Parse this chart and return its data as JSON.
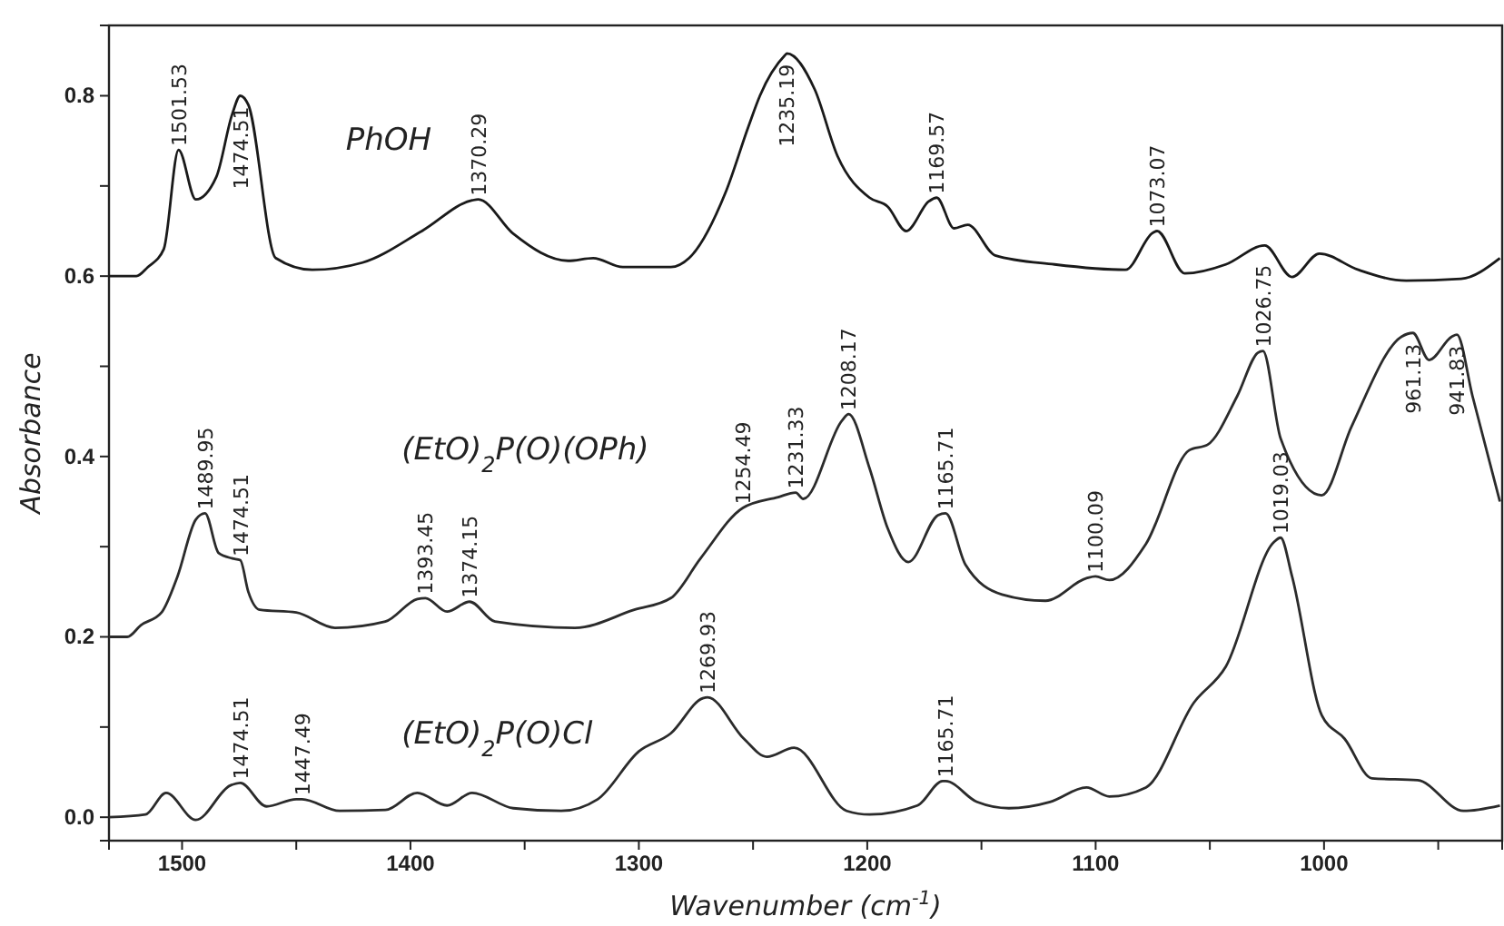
{
  "chart_data": {
    "type": "line",
    "xlabel": "Wavenumber (cm$^{-1}$)",
    "ylabel": "Absorbance",
    "xlim": [
      1532,
      922
    ],
    "ylim": [
      -0.026,
      0.878
    ],
    "xticks": [
      1500,
      {
        "value": 1450,
        "label": null
      },
      1400,
      {
        "value": 1350,
        "label": null
      },
      1300,
      {
        "value": 1250,
        "label": null
      },
      1200,
      {
        "value": 1150,
        "label": null
      },
      1100,
      {
        "value": 1050,
        "label": null
      },
      1000,
      {
        "value": 950,
        "label": null
      }
    ],
    "yticks": [
      {
        "value": 0,
        "label": "0.0"
      },
      {
        "value": 0.1,
        "label": null
      },
      0.2,
      {
        "value": 0.3,
        "label": null
      },
      0.4,
      {
        "value": 0.5,
        "label": null
      },
      0.6,
      {
        "value": 0.7,
        "label": null
      },
      0.8
    ],
    "grid": false,
    "legend": false,
    "marker": "none",
    "line_style": "solid",
    "series": [
      {
        "name": "PhOH",
        "color": "#1a1a1a",
        "x": [
          1532,
          1520,
          1515,
          1508,
          1501.53,
          1494,
          1485,
          1478,
          1474.51,
          1471,
          1459,
          1443,
          1421,
          1395,
          1373,
          1370.29,
          1355,
          1331,
          1320,
          1307,
          1286,
          1278,
          1262,
          1252,
          1247,
          1236,
          1235.19,
          1223,
          1213,
          1199,
          1191,
          1183,
          1173,
          1169.57,
          1162,
          1156,
          1144,
          1118,
          1087,
          1075,
          1073.07,
          1061,
          1043,
          1026,
          1014,
          1002,
          985,
          964,
          940,
          923
        ],
        "values": [
          0.6,
          0.6,
          0.61,
          0.63,
          0.74,
          0.685,
          0.71,
          0.78,
          0.8,
          0.79,
          0.62,
          0.607,
          0.615,
          0.65,
          0.684,
          0.685,
          0.647,
          0.617,
          0.62,
          0.61,
          0.61,
          0.62,
          0.693,
          0.766,
          0.8,
          0.845,
          0.847,
          0.807,
          0.733,
          0.687,
          0.677,
          0.65,
          0.683,
          0.687,
          0.653,
          0.657,
          0.623,
          0.613,
          0.607,
          0.648,
          0.65,
          0.603,
          0.613,
          0.634,
          0.599,
          0.625,
          0.607,
          0.595,
          0.597,
          0.62
        ]
      },
      {
        "name": "(EtO)$_{2}$P(O)(OPh)",
        "color": "#2b2b2b",
        "x": [
          1532,
          1524,
          1518,
          1509,
          1502,
          1494,
          1489.95,
          1484,
          1478,
          1474.51,
          1471,
          1466,
          1450,
          1433,
          1411,
          1397,
          1393.45,
          1384,
          1374.15,
          1363,
          1328,
          1302,
          1286,
          1273,
          1254.49,
          1239,
          1231.33,
          1228,
          1211,
          1208.17,
          1199,
          1191,
          1182,
          1169,
          1165.71,
          1157,
          1141,
          1122,
          1104,
          1100.09,
          1094,
          1078,
          1059,
          1051,
          1038,
          1029,
          1026.75,
          1019,
          1001,
          988,
          966,
          961.13,
          954,
          944,
          941.83,
          935,
          923
        ],
        "values": [
          0.2,
          0.2,
          0.213,
          0.227,
          0.267,
          0.33,
          0.337,
          0.293,
          0.287,
          0.285,
          0.25,
          0.23,
          0.227,
          0.21,
          0.217,
          0.242,
          0.243,
          0.228,
          0.239,
          0.217,
          0.21,
          0.23,
          0.243,
          0.287,
          0.343,
          0.355,
          0.36,
          0.353,
          0.44,
          0.447,
          0.387,
          0.32,
          0.283,
          0.335,
          0.337,
          0.28,
          0.247,
          0.24,
          0.265,
          0.267,
          0.263,
          0.303,
          0.407,
          0.413,
          0.467,
          0.515,
          0.517,
          0.42,
          0.357,
          0.433,
          0.533,
          0.537,
          0.507,
          0.533,
          0.535,
          0.467,
          0.35
        ]
      },
      {
        "name": "(EtO)$_{2}$P(O)Cl",
        "color": "#2b2b2b",
        "x": [
          1532,
          1516,
          1507,
          1494,
          1479,
          1474.51,
          1463,
          1450,
          1447.49,
          1431,
          1411,
          1397,
          1384,
          1373,
          1355,
          1334,
          1318,
          1300,
          1286,
          1272,
          1269.93,
          1254,
          1244,
          1232,
          1209,
          1199,
          1178,
          1167,
          1165.71,
          1152,
          1138,
          1120,
          1104,
          1094,
          1078,
          1057,
          1043,
          1022,
          1019.03,
          1014,
          1001,
          991,
          979,
          959,
          939,
          923
        ],
        "values": [
          0,
          0.003,
          0.027,
          -0.003,
          0.035,
          0.038,
          0.012,
          0.02,
          0.02,
          0.007,
          0.008,
          0.027,
          0.013,
          0.027,
          0.01,
          0.007,
          0.02,
          0.073,
          0.093,
          0.132,
          0.133,
          0.087,
          0.067,
          0.077,
          0.007,
          0.003,
          0.013,
          0.04,
          0.04,
          0.017,
          0.01,
          0.017,
          0.033,
          0.023,
          0.033,
          0.127,
          0.167,
          0.305,
          0.31,
          0.267,
          0.113,
          0.087,
          0.043,
          0.041,
          0.007,
          0.013
        ]
      }
    ],
    "annotations": [
      {
        "text": "1501.53",
        "x": 1501.53,
        "y": 0.74
      },
      {
        "text": "1474.51",
        "x": 1474.51,
        "y": 0.8
      },
      {
        "text": "1370.29",
        "x": 1370.29,
        "y": 0.685
      },
      {
        "text": "1235.19",
        "x": 1235.19,
        "y": 0.847
      },
      {
        "text": "1169.57",
        "x": 1169.57,
        "y": 0.687
      },
      {
        "text": "1073.07",
        "x": 1073.07,
        "y": 0.65
      },
      {
        "text": "1489.95",
        "x": 1489.95,
        "y": 0.337
      },
      {
        "text": "1474.51",
        "x": 1474.51,
        "y": 0.285
      },
      {
        "text": "1393.45",
        "x": 1393.45,
        "y": 0.243
      },
      {
        "text": "1374.15",
        "x": 1374.15,
        "y": 0.239
      },
      {
        "text": "1254.49",
        "x": 1254.49,
        "y": 0.343
      },
      {
        "text": "1231.33",
        "x": 1231.33,
        "y": 0.36
      },
      {
        "text": "1208.17",
        "x": 1208.17,
        "y": 0.447
      },
      {
        "text": "1165.71",
        "x": 1165.71,
        "y": 0.337
      },
      {
        "text": "1100.09",
        "x": 1100.09,
        "y": 0.267
      },
      {
        "text": "1026.75",
        "x": 1026.75,
        "y": 0.517
      },
      {
        "text": "961.13",
        "x": 961.13,
        "y": 0.537
      },
      {
        "text": "941.83",
        "x": 941.83,
        "y": 0.535
      },
      {
        "text": "1474.51",
        "x": 1474.51,
        "y": 0.038
      },
      {
        "text": "1447.49",
        "x": 1447.49,
        "y": 0.02
      },
      {
        "text": "1269.93",
        "x": 1269.93,
        "y": 0.133
      },
      {
        "text": "1165.71",
        "x": 1165.71,
        "y": 0.04
      },
      {
        "text": "1019.03",
        "x": 1019.03,
        "y": 0.31
      }
    ]
  }
}
